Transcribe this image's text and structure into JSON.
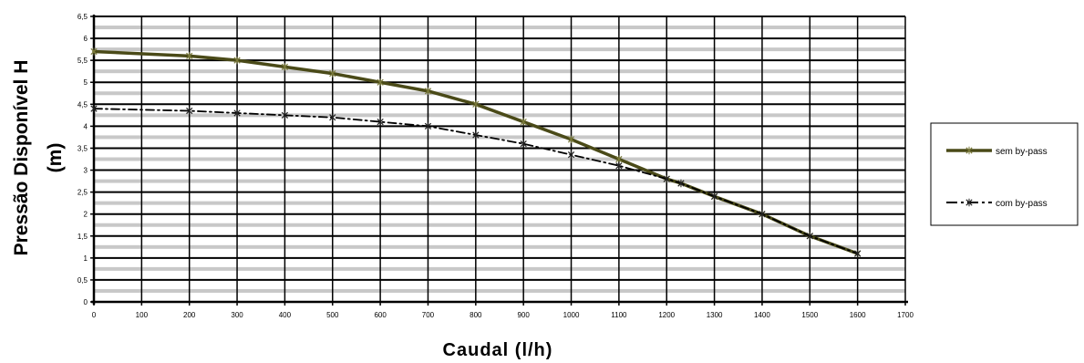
{
  "chart_data": {
    "type": "line",
    "ylabel_line1": "Pressão Disponível H",
    "ylabel_line2": "(m)",
    "xlabel": "Caudal (l/h)",
    "xlim": [
      0,
      1700
    ],
    "ylim": [
      0,
      6.5
    ],
    "x_ticks": [
      "0",
      "100",
      "200",
      "300",
      "400",
      "500",
      "600",
      "700",
      "800",
      "900",
      "1000",
      "1100",
      "1200",
      "1300",
      "1400",
      "1500",
      "1600",
      "1700"
    ],
    "y_ticks": [
      "0",
      "0,5",
      "1",
      "1,5",
      "2",
      "2,5",
      "3",
      "3,5",
      "4",
      "4,5",
      "5",
      "5,5",
      "6",
      "6,5"
    ],
    "grid": true,
    "legend_position": "right",
    "series": [
      {
        "name": "sem by-pass",
        "color": "#4a4a18",
        "style": "solid",
        "x": [
          0,
          200,
          300,
          400,
          500,
          600,
          700,
          800,
          900,
          1000,
          1100,
          1200,
          1230,
          1300,
          1400,
          1500,
          1600
        ],
        "y": [
          5.7,
          5.6,
          5.5,
          5.35,
          5.2,
          5.0,
          4.8,
          4.5,
          4.1,
          3.7,
          3.25,
          2.8,
          2.7,
          2.4,
          2.0,
          1.5,
          1.1
        ]
      },
      {
        "name": "com by-pass",
        "color": "#000000",
        "style": "dashdot",
        "x": [
          0,
          200,
          300,
          400,
          500,
          600,
          700,
          800,
          900,
          1000,
          1100,
          1200,
          1230,
          1300,
          1400,
          1500,
          1600
        ],
        "y": [
          4.4,
          4.35,
          4.3,
          4.25,
          4.2,
          4.1,
          4.0,
          3.8,
          3.6,
          3.35,
          3.1,
          2.8,
          2.7,
          2.4,
          2.0,
          1.5,
          1.1
        ]
      }
    ]
  }
}
